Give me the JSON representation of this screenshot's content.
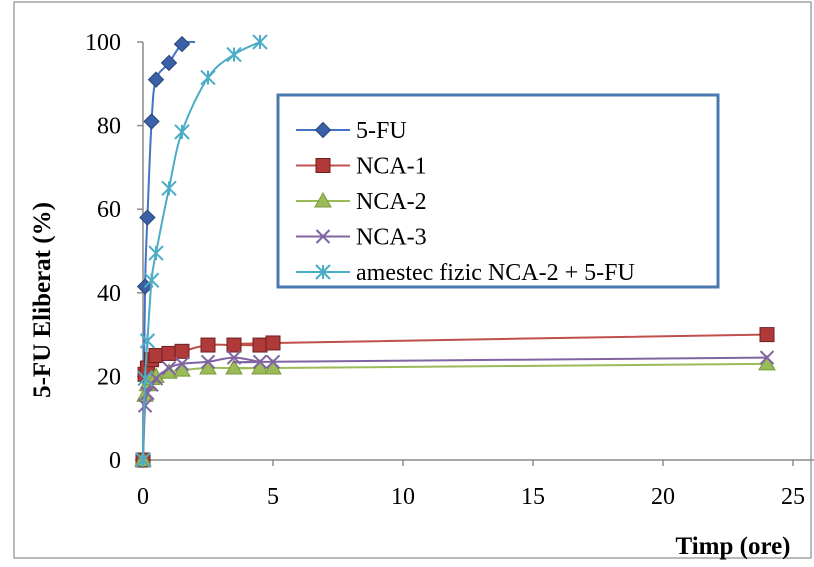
{
  "chart_data": {
    "type": "line",
    "xlabel": "Timp (ore)",
    "ylabel": "5-FU Eliberat (%)",
    "xlim": [
      0,
      25
    ],
    "ylim": [
      0,
      100
    ],
    "x_ticks": [
      "0",
      "5",
      "10",
      "15",
      "20",
      "25"
    ],
    "y_ticks": [
      "0",
      "20",
      "40",
      "60",
      "80",
      "100"
    ],
    "grid": false,
    "legend_position": "upper-middle (inside plot, boxed)",
    "series": [
      {
        "name": "5-FU",
        "color": "#4472c4",
        "marker": "diamond",
        "x": [
          0,
          0.08,
          0.17,
          0.33,
          0.5,
          1,
          1.5,
          2
        ],
        "y": [
          0,
          41.5,
          58,
          81,
          91,
          95,
          99.5,
          100
        ]
      },
      {
        "name": "NCA-1",
        "color": "#c0504d",
        "marker": "square",
        "x": [
          0,
          0.08,
          0.17,
          0.33,
          0.5,
          1,
          1.5,
          2.5,
          3.5,
          4.5,
          5,
          24
        ],
        "y": [
          0,
          20.5,
          22,
          24,
          25,
          25.5,
          26,
          27.5,
          27.5,
          27.5,
          28,
          30
        ]
      },
      {
        "name": "NCA-2",
        "color": "#9bbb59",
        "marker": "triangle",
        "x": [
          0,
          0.08,
          0.17,
          0.33,
          0.5,
          1,
          1.5,
          2.5,
          3.5,
          4.5,
          5,
          24
        ],
        "y": [
          0,
          15.5,
          18,
          19.5,
          20,
          21,
          21.5,
          22,
          22,
          22,
          22,
          23
        ]
      },
      {
        "name": "NCA-3",
        "color": "#8064a2",
        "marker": "x",
        "x": [
          0,
          0.08,
          0.17,
          0.33,
          0.5,
          1,
          1.5,
          2.5,
          3.5,
          4.5,
          5,
          24
        ],
        "y": [
          0,
          13,
          16,
          18,
          19.5,
          22,
          23,
          23.5,
          24.5,
          23.5,
          23.5,
          24.5
        ]
      },
      {
        "name": "amestec fizic NCA-2 + 5-FU",
        "color": "#4bacc6",
        "marker": "asterisk",
        "x": [
          0,
          0.08,
          0.17,
          0.33,
          0.5,
          1,
          1.5,
          2.5,
          3.5,
          4.5
        ],
        "y": [
          0,
          19.5,
          28.5,
          43,
          49.5,
          65,
          78.5,
          91.5,
          97,
          100
        ]
      }
    ]
  }
}
